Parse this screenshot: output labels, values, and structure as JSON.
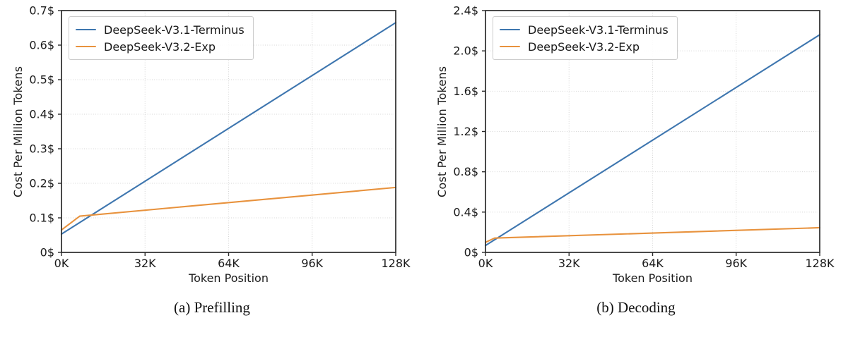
{
  "colors": {
    "blue": "#3e76af",
    "orange": "#e8923d",
    "grid": "#d6d6d6",
    "spine": "#2b2b2b",
    "tick": "#2b2b2b",
    "text": "#1a1a1a",
    "background": "#ffffff",
    "legend_border": "#cccccc"
  },
  "chart_data": [
    {
      "type": "line",
      "caption": "(a) Prefilling",
      "xlabel": "Token Position",
      "ylabel": "Cost Per Million Tokens",
      "xlim": [
        0,
        128
      ],
      "ylim": [
        0,
        0.7
      ],
      "grid": true,
      "legend_position": "upper-left",
      "x_tick_labels": [
        "0K",
        "32K",
        "64K",
        "96K",
        "128K"
      ],
      "x_tick_values": [
        0,
        32,
        64,
        96,
        128
      ],
      "y_tick_labels": [
        "0$",
        "0.1$",
        "0.2$",
        "0.3$",
        "0.4$",
        "0.5$",
        "0.6$",
        "0.7$"
      ],
      "y_tick_values": [
        0,
        0.1,
        0.2,
        0.3,
        0.4,
        0.5,
        0.6,
        0.7
      ],
      "series": [
        {
          "name": "DeepSeek-V3.1-Terminus",
          "color": "#3e76af",
          "points": [
            [
              0,
              0.053
            ],
            [
              128,
              0.665
            ]
          ]
        },
        {
          "name": "DeepSeek-V3.2-Exp",
          "color": "#e8923d",
          "points": [
            [
              0,
              0.065
            ],
            [
              7,
              0.105
            ],
            [
              128,
              0.188
            ]
          ]
        }
      ]
    },
    {
      "type": "line",
      "caption": "(b) Decoding",
      "xlabel": "Token Position",
      "ylabel": "Cost Per Million Tokens",
      "xlim": [
        0,
        128
      ],
      "ylim": [
        0,
        2.4
      ],
      "grid": true,
      "legend_position": "upper-left",
      "x_tick_labels": [
        "0K",
        "32K",
        "64K",
        "96K",
        "128K"
      ],
      "x_tick_values": [
        0,
        32,
        64,
        96,
        128
      ],
      "y_tick_labels": [
        "0$",
        "0.4$",
        "0.8$",
        "1.2$",
        "1.6$",
        "2.0$",
        "2.4$"
      ],
      "y_tick_values": [
        0,
        0.4,
        0.8,
        1.2,
        1.6,
        2.0,
        2.4
      ],
      "series": [
        {
          "name": "DeepSeek-V3.1-Terminus",
          "color": "#3e76af",
          "points": [
            [
              0,
              0.068
            ],
            [
              128,
              2.16
            ]
          ]
        },
        {
          "name": "DeepSeek-V3.2-Exp",
          "color": "#e8923d",
          "points": [
            [
              0,
              0.1
            ],
            [
              3.5,
              0.142
            ],
            [
              128,
              0.245
            ]
          ]
        }
      ]
    }
  ]
}
